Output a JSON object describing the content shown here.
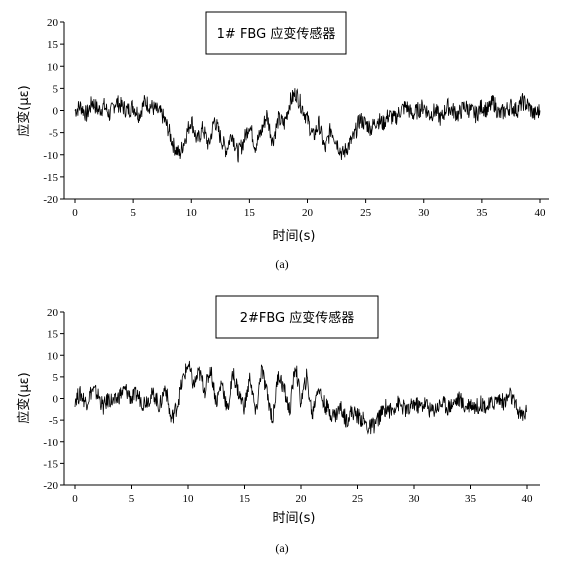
{
  "chart_data": [
    {
      "type": "line",
      "title": "1# FBG 应变传感器",
      "xlabel": "时间(s)",
      "ylabel": "应变(με)",
      "caption": "(a)",
      "xlim": [
        0,
        40
      ],
      "ylim": [
        -20,
        20
      ],
      "xticks": [
        "0",
        "5",
        "10",
        "15",
        "20",
        "25",
        "30",
        "35",
        "40"
      ],
      "yticks": [
        "20",
        "15",
        "10",
        "5",
        "0",
        "-5",
        "-10",
        "-15",
        "-20"
      ],
      "grid": false,
      "series": [
        {
          "x": [
            0,
            0.5,
            1,
            1.5,
            2,
            2.5,
            3,
            3.5,
            4,
            4.5,
            5,
            5.5,
            6,
            6.5,
            7,
            7.5,
            8,
            8.5,
            9,
            9.5,
            10,
            10.5,
            11,
            11.5,
            12,
            12.5,
            13,
            13.5,
            14,
            14.5,
            15,
            15.5,
            16,
            16.5,
            17,
            17.5,
            18,
            18.5,
            19,
            19.5,
            20,
            20.5,
            21,
            21.5,
            22,
            22.5,
            23,
            23.5,
            24,
            24.5,
            25,
            25.5,
            26,
            26.5,
            27,
            27.5,
            28,
            28.5,
            29,
            29.5,
            30,
            30.5,
            31,
            31.5,
            32,
            32.5,
            33,
            33.5,
            34,
            34.5,
            35,
            35.5,
            36,
            36.5,
            37,
            37.5,
            38,
            38.5,
            39,
            39.5,
            40
          ],
          "values": [
            0,
            1,
            -1,
            2,
            0,
            1,
            -1,
            2,
            1,
            0,
            1,
            -1,
            2,
            1,
            0,
            -1,
            -4,
            -8,
            -10,
            -6,
            -2,
            -7,
            -4,
            -8,
            -2,
            -6,
            -9,
            -5,
            -10,
            -7,
            -3,
            -8,
            -5,
            -1,
            -7,
            -2,
            -3,
            2,
            4,
            1,
            -2,
            -6,
            -3,
            -9,
            -4,
            -7,
            -10,
            -8,
            -6,
            -2,
            -3,
            -4,
            -2,
            -3,
            -1,
            -2,
            0,
            1,
            -1,
            0,
            1,
            -1,
            0,
            -2,
            1,
            0,
            -1,
            1,
            0,
            -1,
            1,
            0,
            2,
            -1,
            0,
            1,
            0,
            2,
            1,
            -1,
            0
          ]
        }
      ]
    },
    {
      "type": "line",
      "title": "2#FBG 应变传感器",
      "xlabel": "时间(s)",
      "ylabel": "应变(με)",
      "caption": "(a)",
      "xlim": [
        0,
        40
      ],
      "ylim": [
        -20,
        20
      ],
      "xticks": [
        "0",
        "5",
        "10",
        "15",
        "20",
        "25",
        "30",
        "35",
        "40"
      ],
      "yticks": [
        "20",
        "15",
        "10",
        "5",
        "0",
        "-5",
        "-10",
        "-15",
        "-20"
      ],
      "grid": false,
      "series": [
        {
          "x": [
            0,
            0.5,
            1,
            1.5,
            2,
            2.5,
            3,
            3.5,
            4,
            4.5,
            5,
            5.5,
            6,
            6.5,
            7,
            7.5,
            8,
            8.5,
            9,
            9.5,
            10,
            10.5,
            11,
            11.5,
            12,
            12.5,
            13,
            13.5,
            14,
            14.5,
            15,
            15.5,
            16,
            16.5,
            17,
            17.5,
            18,
            18.5,
            19,
            19.5,
            20,
            20.5,
            21,
            21.5,
            22,
            22.5,
            23,
            23.5,
            24,
            24.5,
            25,
            25.5,
            26,
            26.5,
            27,
            27.5,
            28,
            28.5,
            29,
            29.5,
            30,
            30.5,
            31,
            31.5,
            32,
            32.5,
            33,
            33.5,
            34,
            34.5,
            35,
            35.5,
            36,
            36.5,
            37,
            37.5,
            38,
            38.5,
            39,
            39.5,
            40
          ],
          "values": [
            0,
            1,
            -1,
            2,
            1,
            -2,
            0,
            -1,
            1,
            2,
            0,
            1,
            -1,
            0,
            1,
            -2,
            3,
            -5,
            -2,
            4,
            8,
            3,
            6,
            2,
            7,
            -1,
            4,
            -3,
            6,
            1,
            -2,
            5,
            -4,
            7,
            1,
            -5,
            6,
            2,
            -3,
            8,
            -1,
            5,
            -4,
            3,
            -1,
            -3,
            -4,
            -2,
            -5,
            -3,
            -4,
            -5,
            -7,
            -6,
            -4,
            -2,
            -3,
            -1,
            -2,
            -3,
            -1,
            -2,
            -1,
            -3,
            -2,
            -1,
            -2,
            -1,
            0,
            -2,
            -1,
            -2,
            -1,
            -2,
            -1,
            0,
            -1,
            1,
            -2,
            -4,
            -3
          ]
        }
      ]
    }
  ]
}
